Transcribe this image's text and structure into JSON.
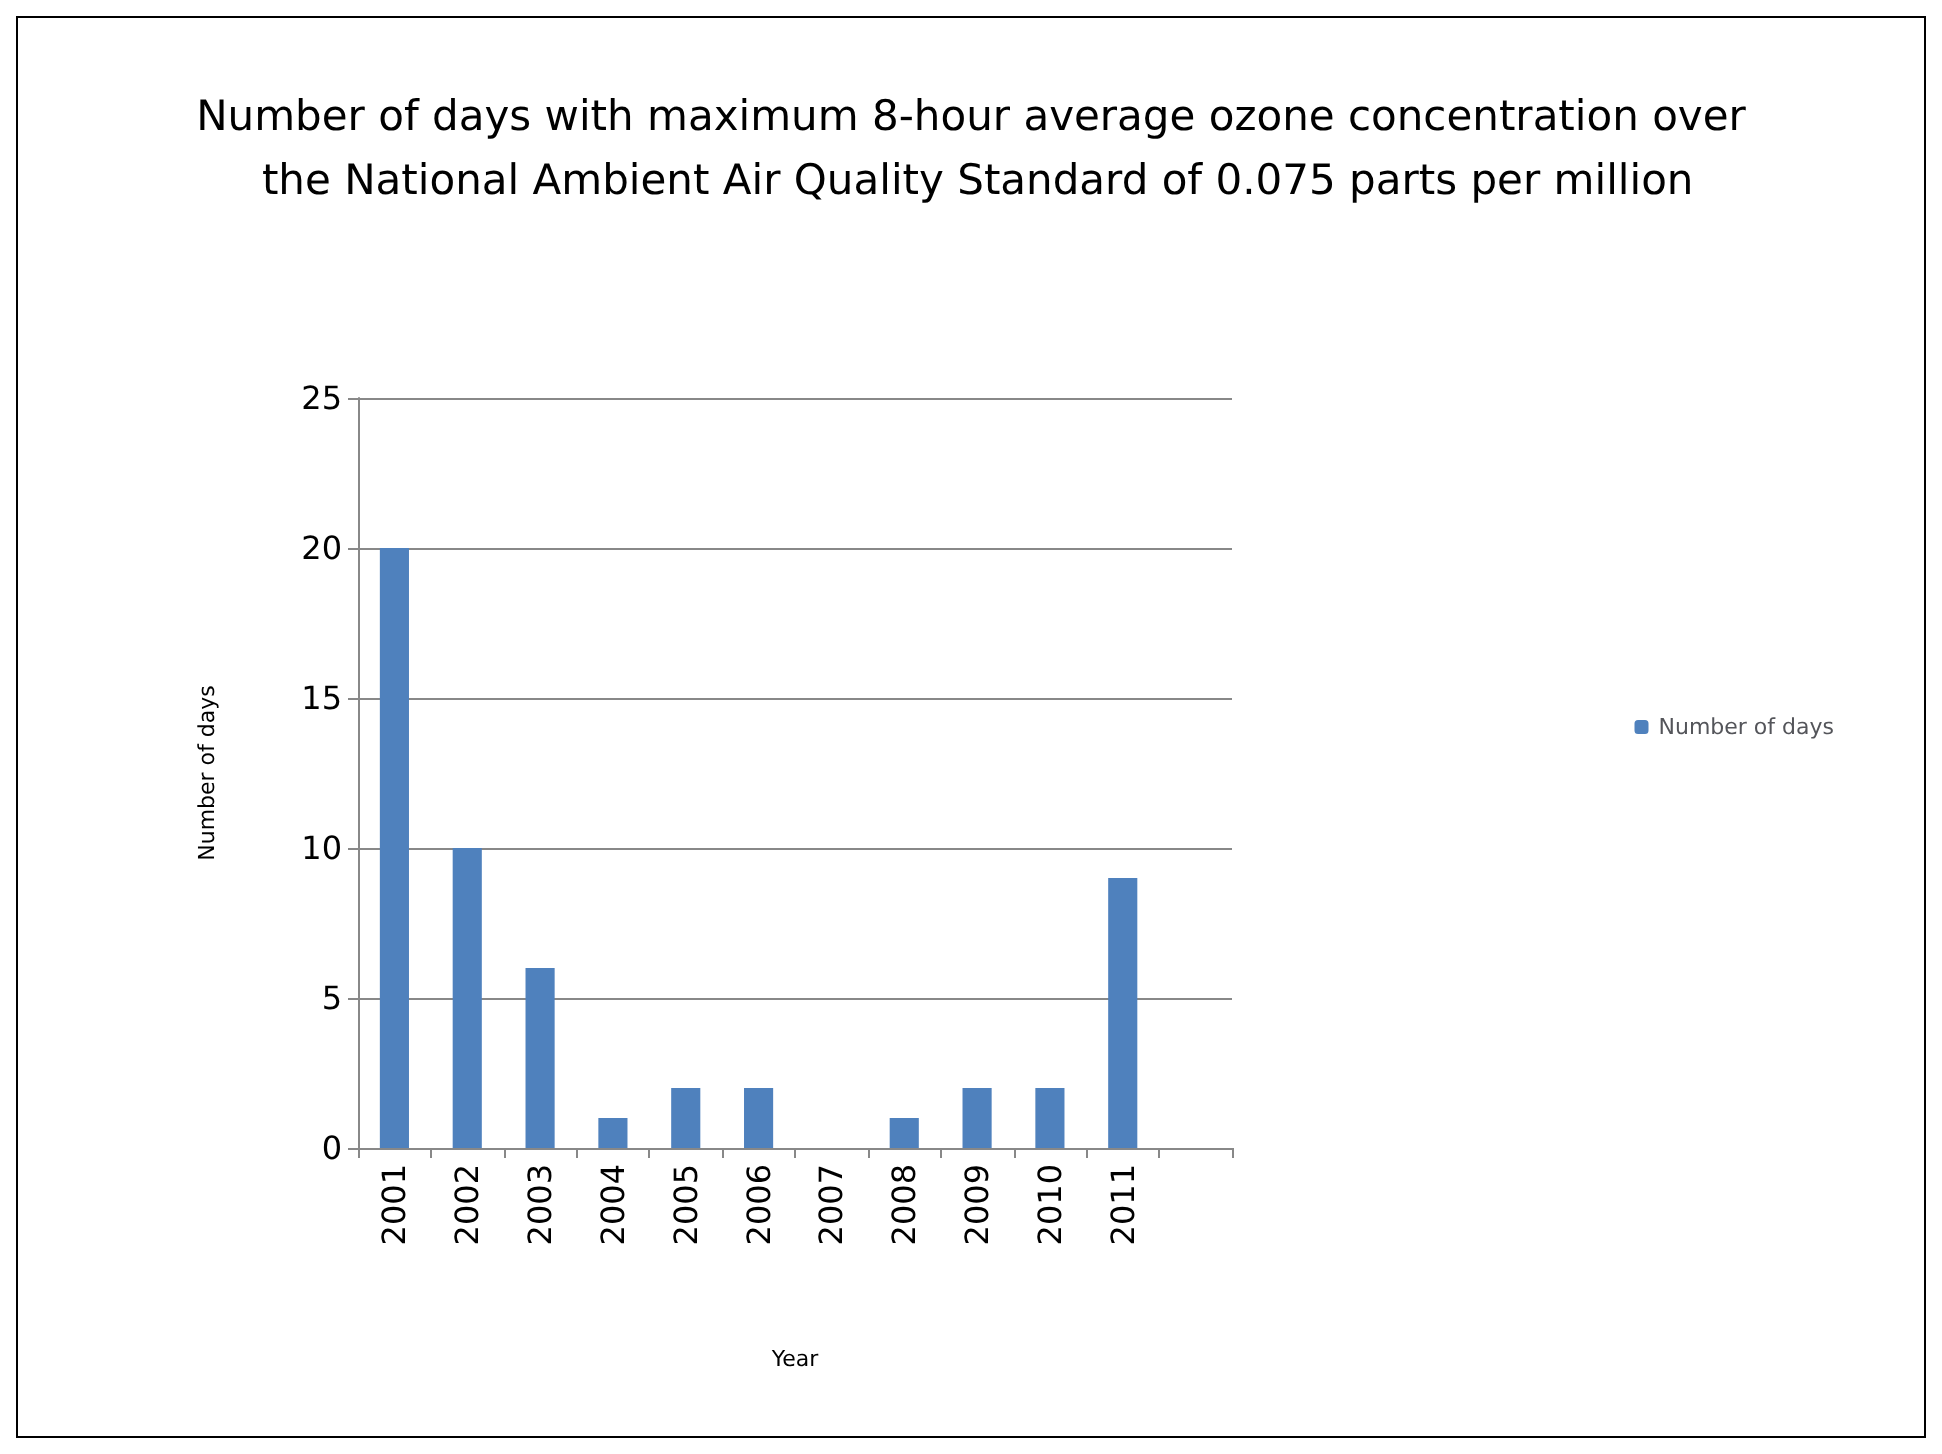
{
  "chart_data": {
    "type": "bar",
    "title": "Number of days with maximum 8-hour average ozone concentration over the National Ambient Air Quality Standard of 0.075 parts per million",
    "xlabel": "Year",
    "ylabel": "Number of days",
    "categories": [
      "2001",
      "2002",
      "2003",
      "2004",
      "2005",
      "2006",
      "2007",
      "2008",
      "2009",
      "2010",
      "2011",
      null
    ],
    "series": [
      {
        "name": "Number of days",
        "color": "#4f81bd",
        "values": [
          20,
          10,
          6,
          1,
          2,
          2,
          0,
          1,
          2,
          2,
          9,
          null
        ]
      }
    ],
    "ylim": [
      0,
      25
    ],
    "yticks": [
      0,
      5,
      10,
      15,
      20,
      25
    ],
    "grid": "y",
    "legend": "right"
  }
}
